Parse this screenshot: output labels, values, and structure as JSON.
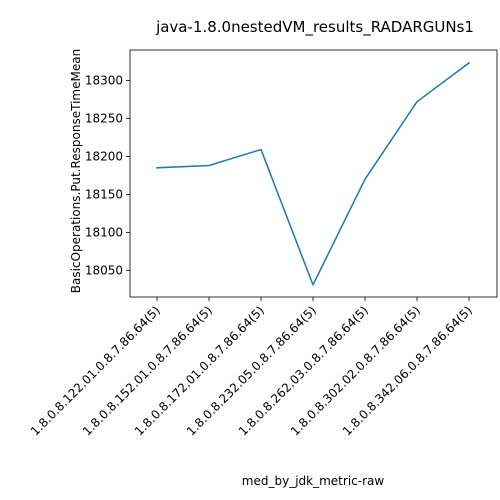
{
  "chart_data": {
    "type": "line",
    "title": "java-1.8.0nestedVM_results_RADARGUNs1",
    "xlabel": "med_by_jdk_metric-raw",
    "ylabel": "BasicOperations.Put.ResponseTimeMean",
    "categories": [
      "1.8.0.8.122.01.0.8.7.86.64(5)",
      "1.8.0.8.152.01.0.8.7.86.64(5)",
      "1.8.0.8.172.01.0.8.7.86.64(5)",
      "1.8.0.8.232.05.0.8.7.86.64(5)",
      "1.8.0.8.262.03.0.8.7.86.64(5)",
      "1.8.0.8.302.02.0.8.7.86.64(5)",
      "1.8.0.8.342.06.0.8.7.86.64(5)"
    ],
    "series": [
      {
        "values": [
          18185,
          18188,
          18209,
          18031,
          18170,
          18272,
          18323
        ],
        "color": "#1f77b4"
      }
    ],
    "ylim": [
      18015,
      18340
    ],
    "yticks": [
      18050,
      18100,
      18150,
      18200,
      18250,
      18300
    ],
    "grid": false,
    "legend": false
  }
}
